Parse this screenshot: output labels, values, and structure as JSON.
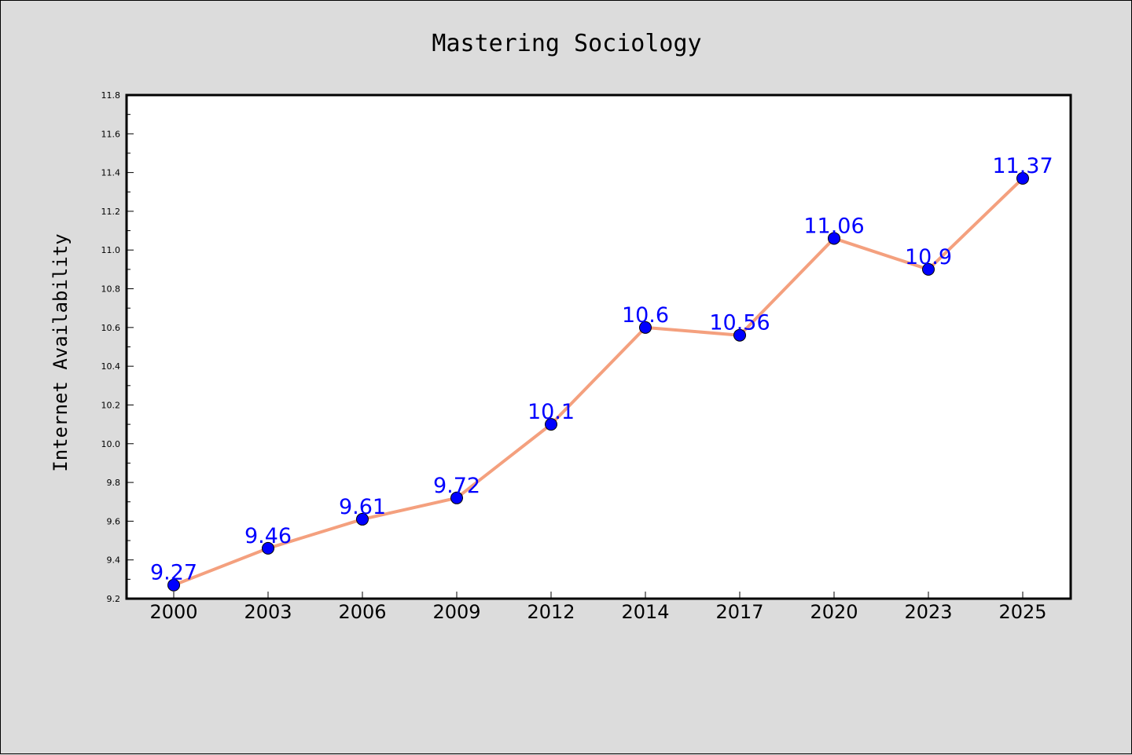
{
  "chart_data": {
    "type": "line",
    "title": "Mastering Sociology",
    "xlabel": "",
    "ylabel": "Internet Availability",
    "categories": [
      "2000",
      "2003",
      "2006",
      "2009",
      "2012",
      "2014",
      "2017",
      "2020",
      "2023",
      "2025"
    ],
    "series": [
      {
        "values": [
          9.27,
          9.46,
          9.61,
          9.72,
          10.1,
          10.6,
          10.56,
          11.06,
          10.9,
          11.37
        ],
        "labels": [
          "9.27",
          "9.46",
          "9.61",
          "9.72",
          "10.1",
          "10.6",
          "10.56",
          "11.06",
          "10.9",
          "11.37"
        ],
        "line_color": "#f4a07e",
        "marker_color": "#0000ff"
      }
    ],
    "ylim": [
      9.2,
      11.8
    ],
    "yticks": [
      "9.2",
      "9.4",
      "9.6",
      "9.8",
      "10.0",
      "10.2",
      "10.4",
      "10.6",
      "10.8",
      "11.0",
      "11.2",
      "11.4",
      "11.6",
      "11.8"
    ],
    "grid": false,
    "legend": "none"
  }
}
